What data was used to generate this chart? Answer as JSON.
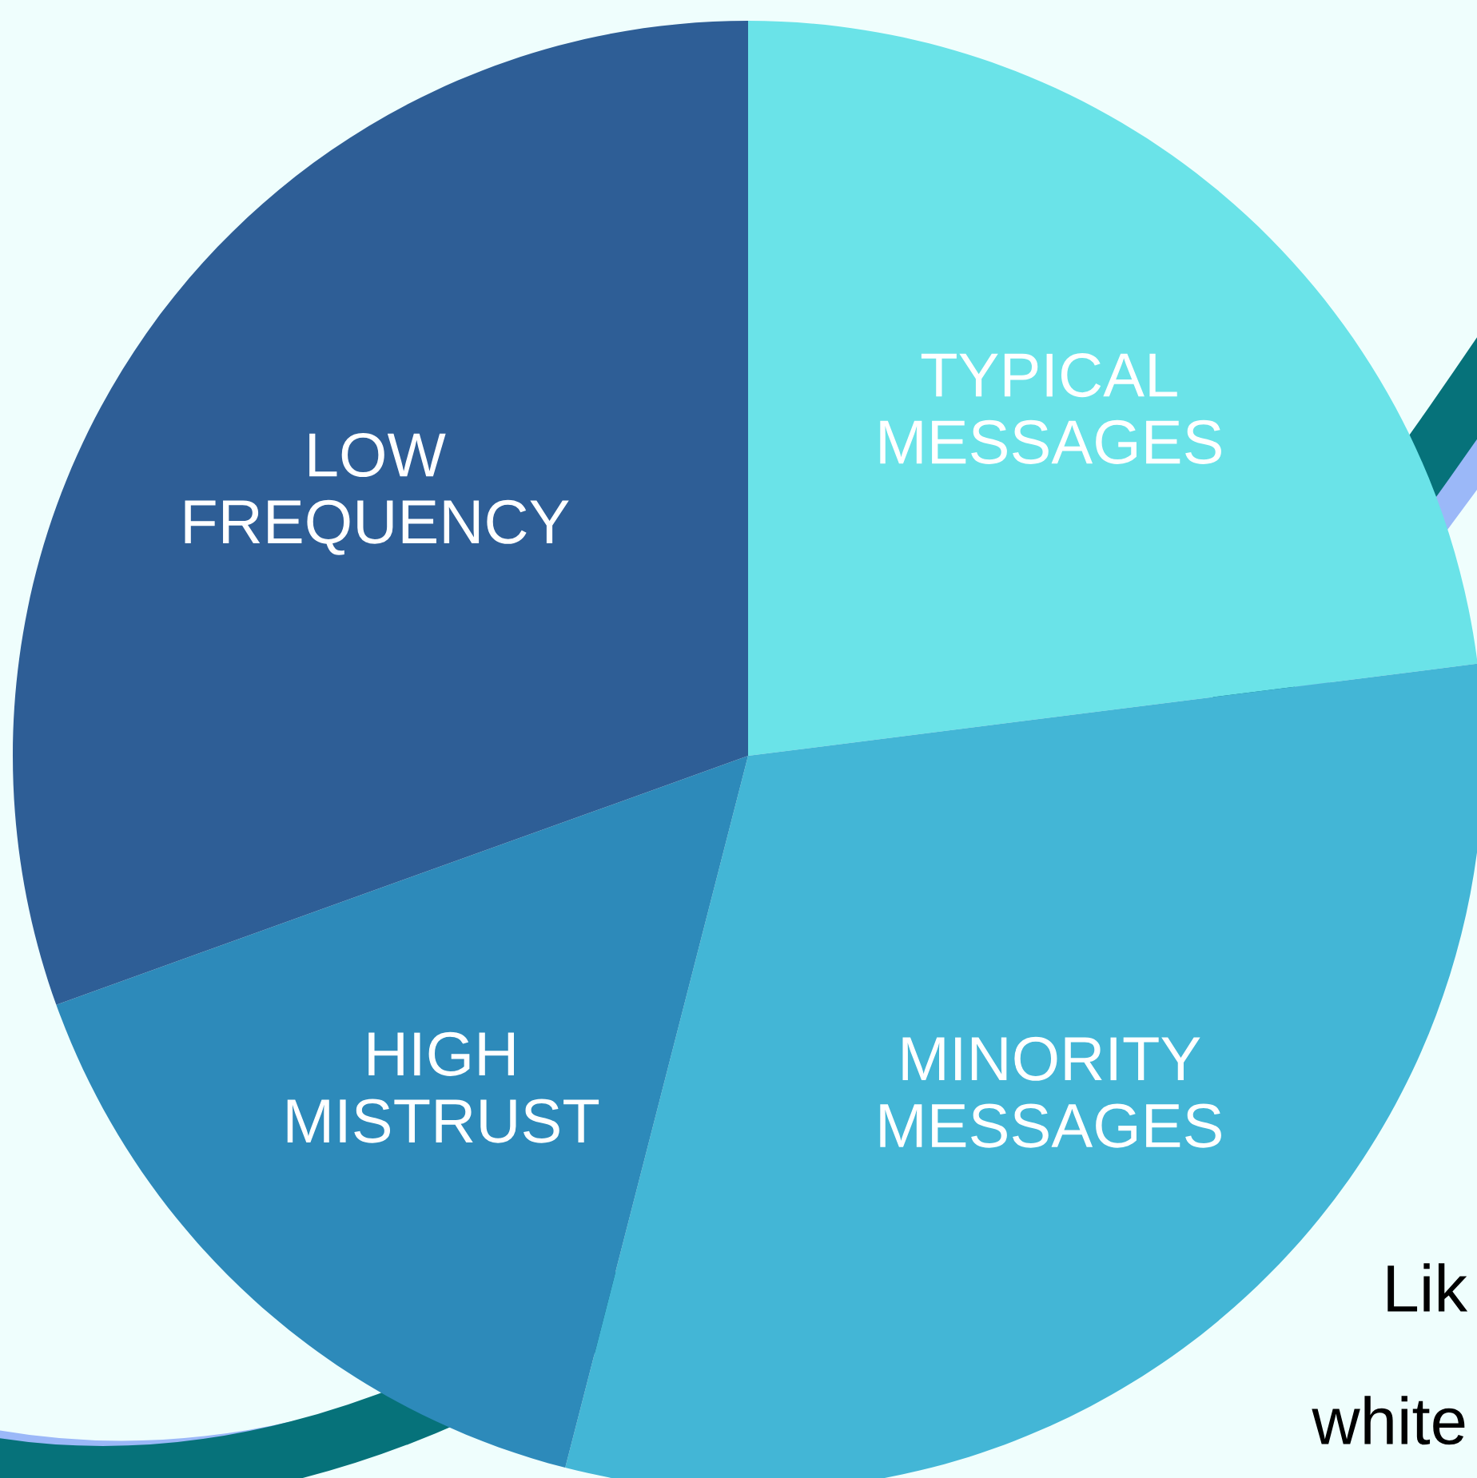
{
  "chart_data": {
    "type": "pie",
    "categories": [
      "TYPICAL MESSAGES",
      "MINORITY MESSAGES",
      "HIGH MISTRUST",
      "LOW FREQUENCY"
    ],
    "values": [
      23,
      31,
      15.5,
      30.5
    ],
    "colors": [
      "#6ae3e8",
      "#43b6d6",
      "#2d8aba",
      "#2e5e96"
    ],
    "annotations": [
      "Lik",
      "white"
    ]
  }
}
